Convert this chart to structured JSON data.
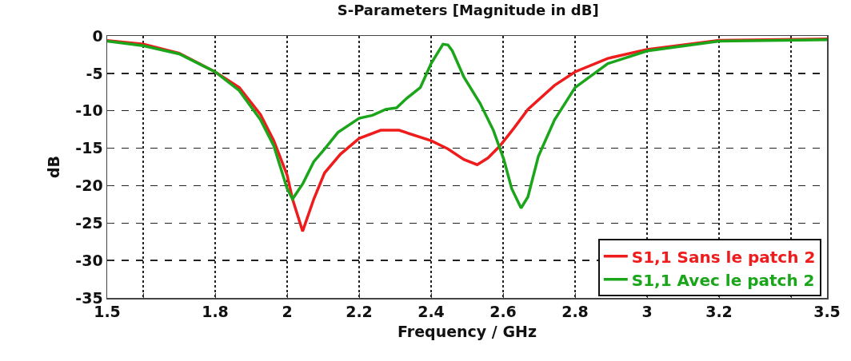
{
  "chart_data": {
    "type": "line",
    "title": "S-Parameters [Magnitude in dB]",
    "xlabel": "Frequency / GHz",
    "ylabel": "dB",
    "xlim": [
      1.5,
      3.5
    ],
    "ylim": [
      -35,
      0
    ],
    "xticks": [
      1.5,
      {
        "value": 1.6,
        "label": null
      },
      1.8,
      2,
      2.2,
      2.4,
      2.6,
      2.8,
      3,
      3.2,
      {
        "value": 3.4,
        "label": null
      },
      3.5
    ],
    "yticks": [
      0,
      -5,
      -10,
      -15,
      -20,
      -25,
      -30,
      -35
    ],
    "grid": true,
    "legend": "bottom right",
    "marker": "none",
    "line_style": "solid",
    "series": [
      {
        "name": "S1,1 Sans le patch 2",
        "color": "#ee1c1c",
        "x": [
          1.5,
          1.6,
          1.7,
          1.8,
          1.867,
          1.926,
          1.963,
          2.0,
          2.015,
          2.043,
          2.074,
          2.104,
          2.148,
          2.2,
          2.26,
          2.311,
          2.4,
          2.447,
          2.491,
          2.528,
          2.558,
          2.591,
          2.632,
          2.669,
          2.743,
          2.8,
          2.891,
          3.0,
          3.2,
          3.5
        ],
        "values": [
          -0.6,
          -1.1,
          -2.3,
          -4.8,
          -6.9,
          -10.5,
          -14.0,
          -18.6,
          -21.8,
          -26.1,
          -21.8,
          -18.3,
          -15.8,
          -13.7,
          -12.6,
          -12.6,
          -14.0,
          -15.1,
          -16.5,
          -17.2,
          -16.3,
          -14.7,
          -12.2,
          -9.8,
          -6.6,
          -4.8,
          -3.0,
          -1.8,
          -0.6,
          -0.4
        ]
      },
      {
        "name": "S1,1 Avec le patch 2",
        "color": "#1aa51a",
        "x": [
          1.5,
          1.6,
          1.7,
          1.8,
          1.867,
          1.926,
          1.963,
          2.0,
          2.015,
          2.044,
          2.074,
          2.104,
          2.141,
          2.2,
          2.237,
          2.274,
          2.304,
          2.333,
          2.37,
          2.4,
          2.433,
          2.447,
          2.459,
          2.491,
          2.536,
          2.573,
          2.602,
          2.624,
          2.65,
          2.669,
          2.698,
          2.743,
          2.8,
          2.891,
          3.0,
          3.2,
          3.5
        ],
        "values": [
          -0.7,
          -1.3,
          -2.4,
          -4.8,
          -7.3,
          -11.2,
          -14.7,
          -20.4,
          -21.8,
          -19.7,
          -16.8,
          -15.1,
          -12.9,
          -11.0,
          -10.6,
          -9.8,
          -9.6,
          -8.3,
          -6.9,
          -3.7,
          -1.1,
          -1.2,
          -2.0,
          -5.5,
          -9.0,
          -12.6,
          -16.5,
          -20.4,
          -23.0,
          -21.5,
          -16.1,
          -11.2,
          -6.9,
          -3.7,
          -2.0,
          -0.7,
          -0.5
        ]
      }
    ]
  }
}
